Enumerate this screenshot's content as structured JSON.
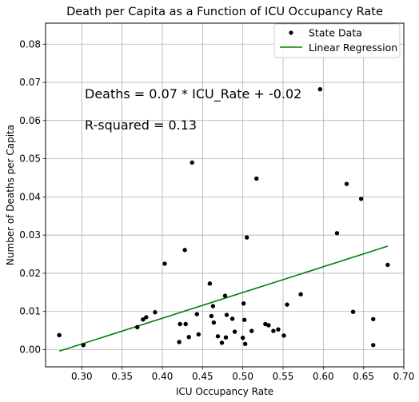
{
  "chart_data": {
    "type": "scatter",
    "title": "Death per Capita  as a Function of ICU Occupancy Rate",
    "xlabel": "ICU Occupancy Rate",
    "ylabel": "Number of Deaths per Capita",
    "xlim": [
      0.255,
      0.7
    ],
    "ylim": [
      -0.0045,
      0.0855
    ],
    "x_ticks": [
      0.3,
      0.35,
      0.4,
      0.45,
      0.5,
      0.55,
      0.6,
      0.65,
      0.7
    ],
    "x_tick_labels": [
      "0.30",
      "0.35",
      "0.40",
      "0.45",
      "0.50",
      "0.55",
      "0.60",
      "0.65",
      "0.70"
    ],
    "y_ticks": [
      0.0,
      0.01,
      0.02,
      0.03,
      0.04,
      0.05,
      0.06,
      0.07,
      0.08
    ],
    "y_tick_labels": [
      "0.00",
      "0.01",
      "0.02",
      "0.03",
      "0.04",
      "0.05",
      "0.06",
      "0.07",
      "0.08"
    ],
    "grid": true,
    "legend_position": "top-right",
    "annotations": [
      "Deaths = 0.07 * ICU_Rate + -0.02",
      "R-squared = 0.13"
    ],
    "series": [
      {
        "name": "State Data",
        "kind": "scatter",
        "color": "#000000",
        "points": [
          [
            0.272,
            0.0038
          ],
          [
            0.302,
            0.0012
          ],
          [
            0.369,
            0.0059
          ],
          [
            0.376,
            0.0079
          ],
          [
            0.38,
            0.0085
          ],
          [
            0.391,
            0.0098
          ],
          [
            0.403,
            0.0225
          ],
          [
            0.421,
            0.002
          ],
          [
            0.422,
            0.0067
          ],
          [
            0.428,
            0.0261
          ],
          [
            0.429,
            0.0067
          ],
          [
            0.433,
            0.0033
          ],
          [
            0.437,
            0.049
          ],
          [
            0.443,
            0.0093
          ],
          [
            0.445,
            0.004
          ],
          [
            0.459,
            0.0173
          ],
          [
            0.461,
            0.0088
          ],
          [
            0.463,
            0.0114
          ],
          [
            0.464,
            0.0071
          ],
          [
            0.469,
            0.0035
          ],
          [
            0.474,
            0.0018
          ],
          [
            0.478,
            0.0141
          ],
          [
            0.479,
            0.0032
          ],
          [
            0.48,
            0.0091
          ],
          [
            0.487,
            0.0081
          ],
          [
            0.49,
            0.0047
          ],
          [
            0.5,
            0.0031
          ],
          [
            0.501,
            0.0121
          ],
          [
            0.502,
            0.0078
          ],
          [
            0.503,
            0.0015
          ],
          [
            0.505,
            0.0294
          ],
          [
            0.511,
            0.0049
          ],
          [
            0.517,
            0.0448
          ],
          [
            0.528,
            0.0067
          ],
          [
            0.532,
            0.0064
          ],
          [
            0.538,
            0.0049
          ],
          [
            0.544,
            0.0053
          ],
          [
            0.551,
            0.0037
          ],
          [
            0.555,
            0.0118
          ],
          [
            0.572,
            0.0145
          ],
          [
            0.596,
            0.0682
          ],
          [
            0.617,
            0.0305
          ],
          [
            0.629,
            0.0434
          ],
          [
            0.637,
            0.0099
          ],
          [
            0.647,
            0.0395
          ],
          [
            0.662,
            0.008
          ],
          [
            0.662,
            0.0012
          ],
          [
            0.68,
            0.0222
          ]
        ]
      },
      {
        "name": "Linear Regression",
        "kind": "line",
        "color": "#008000",
        "points": [
          [
            0.272,
            -0.0004
          ],
          [
            0.68,
            0.0271
          ]
        ]
      }
    ]
  }
}
